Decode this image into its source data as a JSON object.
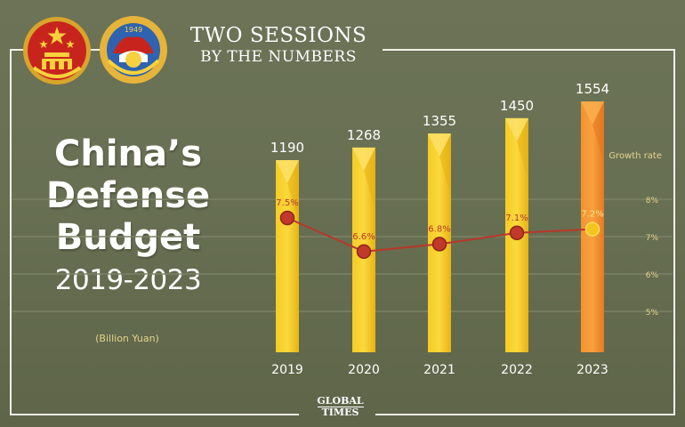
{
  "header": {
    "line1": "TWO SESSIONS",
    "line2": "BY THE NUMBERS"
  },
  "title": {
    "line1": "China’s",
    "line2": "Defense",
    "line3": "Budget",
    "years": "2019-2023",
    "unit": "(Billion Yuan)"
  },
  "logo": {
    "line1": "GLOBAL",
    "line2": "TIMES"
  },
  "emblems": {
    "right_year": "1949"
  },
  "colors": {
    "background": "#687053",
    "bar_gold": "#f2c21a",
    "bar_highlight": "#f8d43a",
    "bar_orange": "#f0892c",
    "growth_line": "#b8372a",
    "growth_marker_last": "#f5c51f",
    "axis_label": "#e4d48a"
  },
  "chart_data": {
    "type": "bar",
    "categories": [
      "2019",
      "2020",
      "2021",
      "2022",
      "2023"
    ],
    "values": [
      1190,
      1268,
      1355,
      1450,
      1554
    ],
    "value_labels": [
      "1190",
      "1268",
      "1355",
      "1450",
      "1554"
    ],
    "ylim": [
      0,
      1600
    ],
    "growth_rate": {
      "label": "Growth rate",
      "values": [
        7.5,
        6.6,
        6.8,
        7.1,
        7.2
      ],
      "labels": [
        "7.5%",
        "6.6%",
        "6.8%",
        "7.1%",
        "7.2%"
      ],
      "ticks": [
        8,
        7,
        6,
        5
      ],
      "tick_labels": [
        "8%",
        "7%",
        "6%",
        "5%"
      ],
      "ylim": [
        5,
        8
      ],
      "axis_position": "right"
    },
    "grid": true
  }
}
